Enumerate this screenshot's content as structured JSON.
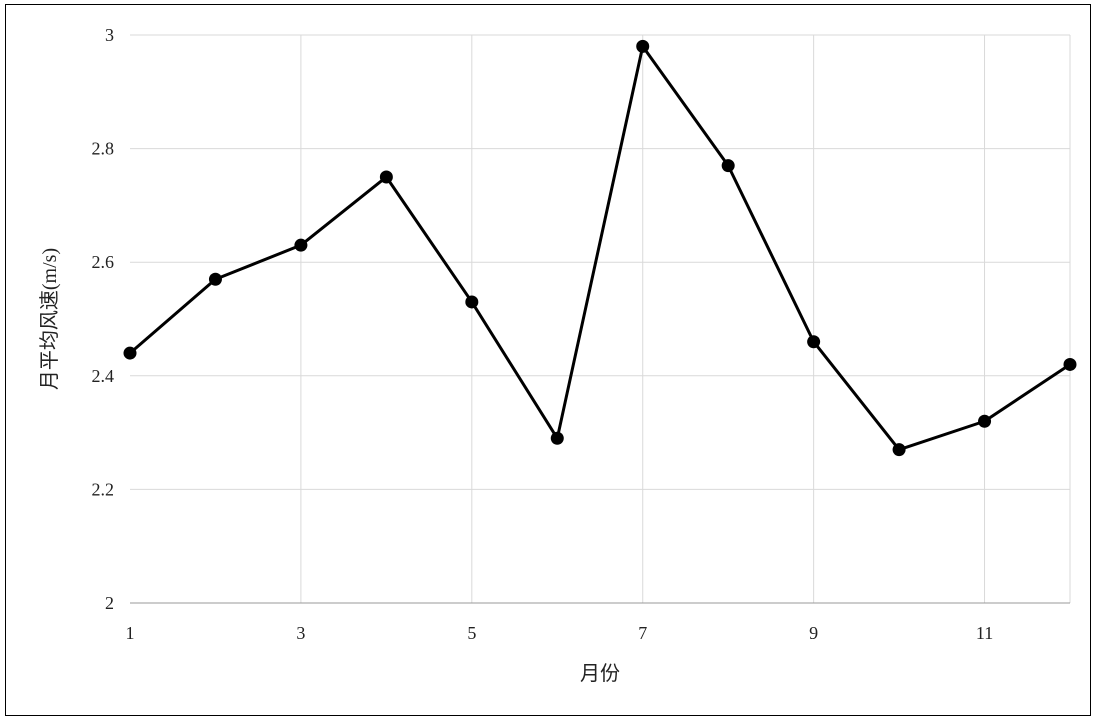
{
  "chart_data": {
    "type": "line",
    "x": [
      1,
      2,
      3,
      4,
      5,
      6,
      7,
      8,
      9,
      10,
      11,
      12
    ],
    "series": [
      {
        "values": [
          2.44,
          2.57,
          2.63,
          2.75,
          2.53,
          2.29,
          2.98,
          2.77,
          2.46,
          2.27,
          2.32,
          2.42
        ]
      }
    ],
    "xlabel": "月份",
    "ylabel": "月平均风速(m/s)",
    "xlim": [
      1,
      12
    ],
    "ylim": [
      2,
      3
    ],
    "xticks": [
      "1",
      "3",
      "5",
      "7",
      "9",
      "11"
    ],
    "xtick_values": [
      1,
      3,
      5,
      7,
      9,
      11
    ],
    "yticks": [
      "2",
      "2.2",
      "2.4",
      "2.6",
      "2.8",
      "3"
    ],
    "ytick_values": [
      2,
      2.2,
      2.4,
      2.6,
      2.8,
      3
    ],
    "grid": true,
    "legend": "none",
    "colors": {
      "line": "#000000",
      "marker": "#000000",
      "grid": "#d9d9d9",
      "axis": "#999999"
    }
  }
}
